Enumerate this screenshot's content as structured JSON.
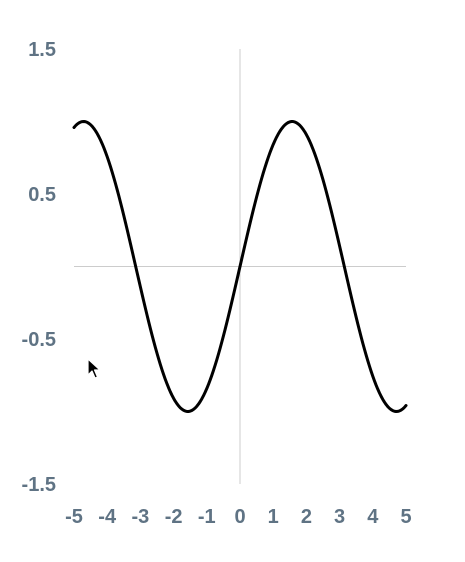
{
  "chart_data": {
    "type": "line",
    "function": "sin(x)",
    "xlim": [
      -5,
      5
    ],
    "ylim": [
      -1.5,
      1.5
    ],
    "x_ticks": [
      -5,
      -4,
      -3,
      -2,
      -1,
      0,
      1,
      2,
      3,
      4,
      5
    ],
    "x_tick_labels": [
      "-5",
      "-4",
      "-3",
      "-2",
      "-1",
      "0",
      "1",
      "2",
      "3",
      "4",
      "5"
    ],
    "y_ticks": [
      1.5,
      0.5,
      -0.5,
      -1.5
    ],
    "y_tick_labels": [
      "1.5",
      "0.5",
      "-0.5",
      "-1.5"
    ],
    "series": [
      {
        "name": "sin(x)",
        "x": [
          -5,
          -4.5,
          -4,
          -3.5,
          -3,
          -2.5,
          -2,
          -1.5,
          -1,
          -0.5,
          0,
          0.5,
          1,
          1.5,
          2,
          2.5,
          3,
          3.5,
          4,
          4.5,
          5
        ],
        "values": [
          0.959,
          0.978,
          0.757,
          0.351,
          -0.141,
          -0.598,
          -0.909,
          -0.997,
          -0.841,
          -0.479,
          0,
          0.479,
          0.841,
          0.997,
          0.909,
          0.598,
          0.141,
          -0.351,
          -0.757,
          -0.978,
          -0.959
        ]
      }
    ],
    "title": "",
    "xlabel": "",
    "ylabel": "",
    "grid": false
  },
  "colors": {
    "curve": "#000000",
    "axis": "#cccccc",
    "tick_text": "#5f7384"
  }
}
